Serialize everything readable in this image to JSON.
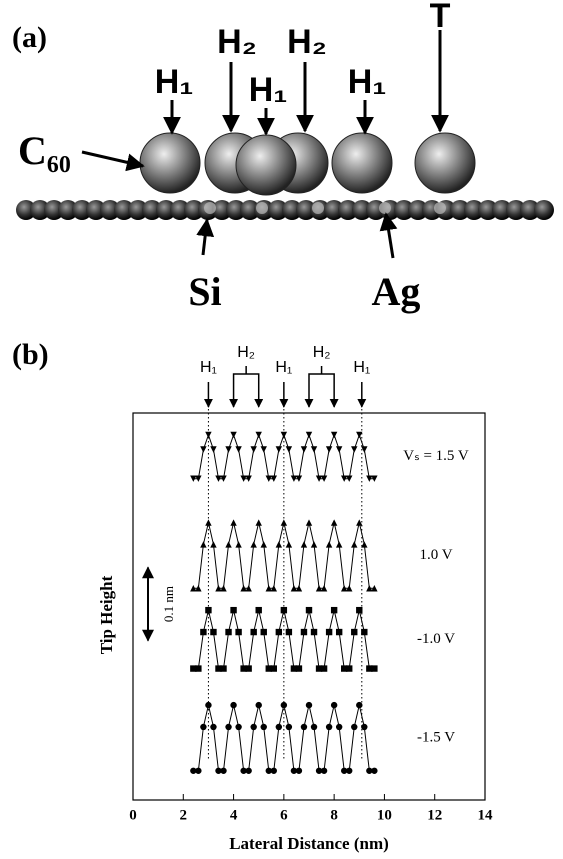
{
  "panel_a": {
    "panel_label": "(a)",
    "labels": {
      "h1": "H₁",
      "h2": "H₂",
      "t": "T",
      "c60": "C₆₀",
      "si": "Si",
      "ag": "Ag"
    }
  },
  "chart_data": {
    "type": "line",
    "panel_label": "(b)",
    "xlabel": "Lateral Distance (nm)",
    "ylabel": "Tip Height",
    "xlim": [
      0,
      14
    ],
    "xticks": [
      0,
      2,
      4,
      6,
      8,
      10,
      12,
      14
    ],
    "ylim": [
      0,
      0.53
    ],
    "scale_bar": {
      "length": 0.1,
      "label": "0.1 nm"
    },
    "guide_lines": [
      3.0,
      6.0,
      9.1
    ],
    "peak_labels": [
      {
        "label": "H₁",
        "x": [
          3.0
        ]
      },
      {
        "label": "H₂",
        "x": [
          4.0,
          5.0
        ]
      },
      {
        "label": "H₁",
        "x": [
          6.0
        ]
      },
      {
        "label": "H₂",
        "x": [
          7.0,
          8.0
        ]
      },
      {
        "label": "H₁",
        "x": [
          9.1
        ]
      }
    ],
    "x": [
      2.4,
      2.6,
      2.8,
      3.0,
      3.2,
      3.4,
      3.6,
      3.8,
      4.0,
      4.2,
      4.4,
      4.6,
      4.8,
      5.0,
      5.2,
      5.4,
      5.6,
      5.8,
      6.0,
      6.2,
      6.4,
      6.6,
      6.8,
      7.0,
      7.2,
      7.4,
      7.6,
      7.8,
      8.0,
      8.2,
      8.4,
      8.6,
      8.8,
      9.0,
      9.2,
      9.4,
      9.6
    ],
    "series": [
      {
        "name": "Vₛ = 1.5 V",
        "color": "#000000",
        "marker": "triangle-down",
        "values": [
          0.44,
          0.44,
          0.48,
          0.5,
          0.48,
          0.44,
          0.44,
          0.48,
          0.5,
          0.48,
          0.44,
          0.44,
          0.48,
          0.5,
          0.48,
          0.44,
          0.44,
          0.48,
          0.5,
          0.48,
          0.44,
          0.44,
          0.48,
          0.5,
          0.48,
          0.44,
          0.44,
          0.48,
          0.5,
          0.48,
          0.44,
          0.44,
          0.48,
          0.5,
          0.48,
          0.44,
          0.44
        ]
      },
      {
        "name": "1.0 V",
        "color": "#000000",
        "marker": "triangle",
        "values": [
          0.29,
          0.29,
          0.35,
          0.38,
          0.35,
          0.29,
          0.29,
          0.35,
          0.38,
          0.35,
          0.29,
          0.29,
          0.35,
          0.38,
          0.35,
          0.29,
          0.29,
          0.35,
          0.38,
          0.35,
          0.29,
          0.29,
          0.35,
          0.38,
          0.35,
          0.29,
          0.29,
          0.35,
          0.38,
          0.35,
          0.29,
          0.29,
          0.35,
          0.38,
          0.35,
          0.29,
          0.29
        ]
      },
      {
        "name": "-1.0 V",
        "color": "#000000",
        "marker": "square",
        "values": [
          0.18,
          0.18,
          0.23,
          0.26,
          0.23,
          0.18,
          0.18,
          0.23,
          0.26,
          0.23,
          0.18,
          0.18,
          0.23,
          0.26,
          0.23,
          0.18,
          0.18,
          0.23,
          0.26,
          0.23,
          0.18,
          0.18,
          0.23,
          0.26,
          0.23,
          0.18,
          0.18,
          0.23,
          0.26,
          0.23,
          0.18,
          0.18,
          0.23,
          0.26,
          0.23,
          0.18,
          0.18
        ]
      },
      {
        "name": "-1.5 V",
        "color": "#000000",
        "marker": "circle",
        "values": [
          0.04,
          0.04,
          0.1,
          0.13,
          0.1,
          0.04,
          0.04,
          0.1,
          0.13,
          0.1,
          0.04,
          0.04,
          0.1,
          0.13,
          0.1,
          0.04,
          0.04,
          0.1,
          0.13,
          0.1,
          0.04,
          0.04,
          0.1,
          0.13,
          0.1,
          0.04,
          0.04,
          0.1,
          0.13,
          0.1,
          0.04,
          0.04,
          0.1,
          0.13,
          0.1,
          0.04,
          0.04
        ]
      }
    ]
  }
}
